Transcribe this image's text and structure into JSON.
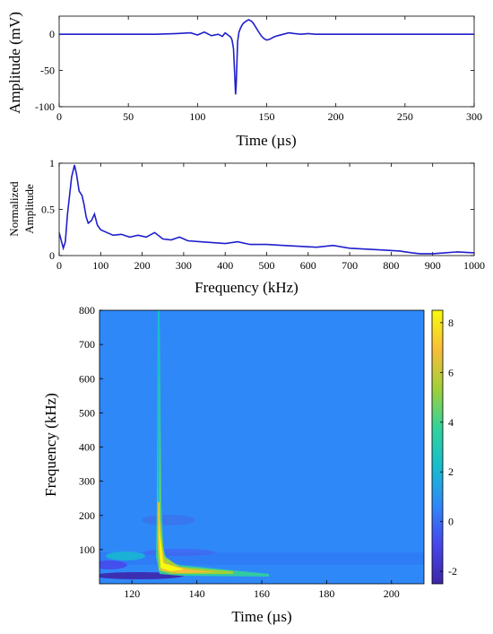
{
  "chart_data": [
    {
      "type": "line",
      "xlabel": "Time (µs)",
      "ylabel": "Amplitude (mV)",
      "xlim": [
        0,
        300
      ],
      "ylim": [
        -100,
        25
      ],
      "xticks": [
        0,
        50,
        100,
        150,
        200,
        250,
        300
      ],
      "yticks": [
        0,
        -50,
        -100
      ],
      "color": "#1f1fcc",
      "series": [
        {
          "x": [
            0,
            70,
            85,
            95,
            100,
            105,
            110,
            115,
            118,
            120,
            122,
            124,
            125,
            126,
            127,
            127.5,
            128,
            128.5,
            129,
            130,
            131,
            132,
            133,
            135,
            137,
            139,
            140,
            142,
            144,
            146,
            148,
            150,
            152,
            155,
            158,
            162,
            166,
            170,
            175,
            180,
            185,
            190,
            200,
            300
          ],
          "y": [
            0,
            0,
            1,
            2,
            -1,
            3,
            -2,
            0,
            -3,
            2,
            -1,
            -4,
            -8,
            -20,
            -60,
            -83,
            -70,
            -40,
            -10,
            3,
            8,
            12,
            15,
            18,
            20,
            18,
            16,
            10,
            4,
            -2,
            -6,
            -8,
            -7,
            -4,
            -2,
            0,
            2,
            1,
            0,
            1,
            0,
            0,
            0,
            0
          ]
        }
      ]
    },
    {
      "type": "line",
      "xlabel": "Frequency (kHz)",
      "ylabel": "Normalized Amplitude",
      "ylabel_lines": [
        "Normalized",
        "Amplitude"
      ],
      "xlim": [
        0,
        1000
      ],
      "ylim": [
        0,
        1
      ],
      "xticks": [
        0,
        100,
        200,
        300,
        400,
        500,
        600,
        700,
        800,
        900,
        1000
      ],
      "yticks": [
        0,
        0.5,
        1
      ],
      "color": "#1f1fcc",
      "series": [
        {
          "x": [
            0,
            10,
            15,
            20,
            30,
            37,
            42,
            48,
            55,
            60,
            65,
            70,
            78,
            85,
            92,
            100,
            115,
            130,
            150,
            170,
            190,
            210,
            230,
            250,
            270,
            290,
            310,
            340,
            370,
            400,
            430,
            460,
            500,
            540,
            580,
            620,
            660,
            700,
            740,
            780,
            820,
            850,
            870,
            900,
            930,
            960,
            1000
          ],
          "y": [
            0.25,
            0.08,
            0.15,
            0.45,
            0.85,
            0.98,
            0.88,
            0.7,
            0.65,
            0.55,
            0.42,
            0.35,
            0.38,
            0.45,
            0.33,
            0.28,
            0.25,
            0.22,
            0.23,
            0.2,
            0.22,
            0.2,
            0.25,
            0.18,
            0.17,
            0.2,
            0.16,
            0.15,
            0.14,
            0.13,
            0.15,
            0.12,
            0.12,
            0.11,
            0.1,
            0.09,
            0.11,
            0.08,
            0.07,
            0.06,
            0.05,
            0.03,
            0.02,
            0.02,
            0.03,
            0.04,
            0.03
          ]
        }
      ]
    },
    {
      "type": "heatmap",
      "xlabel": "Time (µs)",
      "ylabel": "Frequency (kHz)",
      "xlim": [
        110,
        210
      ],
      "ylim": [
        0,
        800
      ],
      "xticks": [
        120,
        140,
        160,
        180,
        200
      ],
      "yticks": [
        100,
        200,
        300,
        400,
        500,
        600,
        700,
        800
      ],
      "colorbar": {
        "range": [
          -2.5,
          8.5
        ],
        "ticks": [
          -2,
          0,
          2,
          4,
          6,
          8
        ]
      },
      "colormap": [
        "#3e26a8",
        "#4746eb",
        "#2f88f8",
        "#17bdce",
        "#33d29a",
        "#a0d03a",
        "#f9bd39",
        "#f8fa0d"
      ],
      "background_value": 0.0
    }
  ]
}
